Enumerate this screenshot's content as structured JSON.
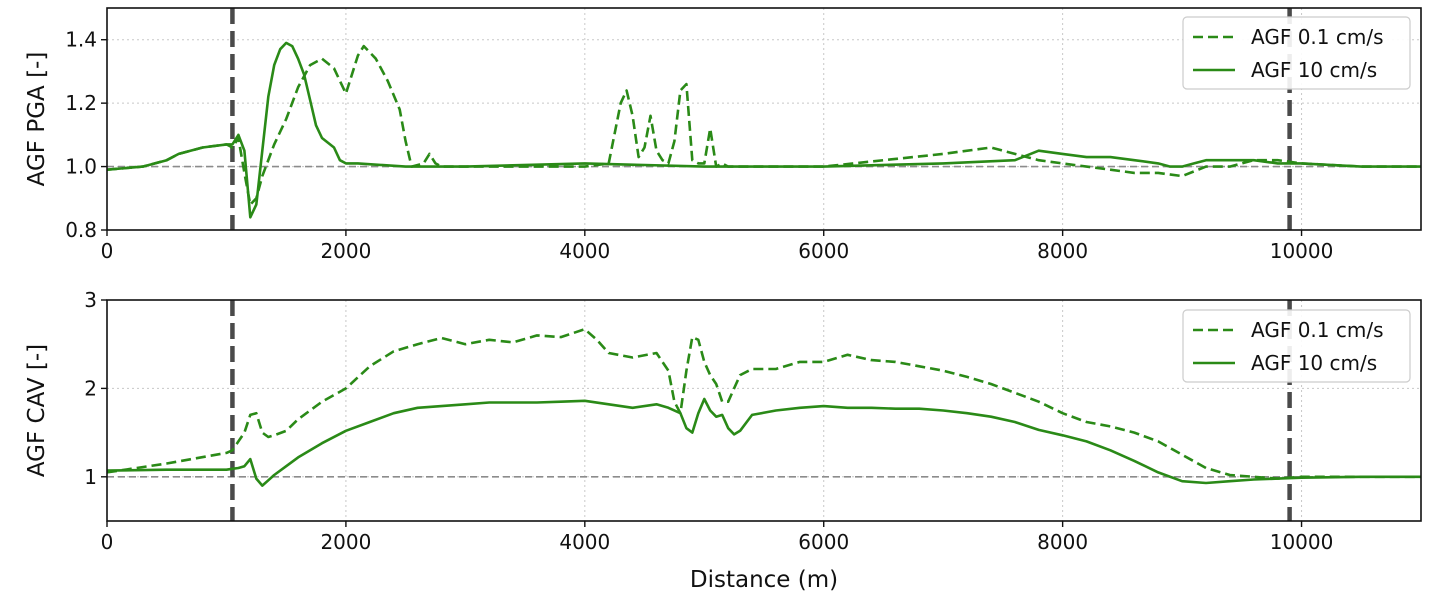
{
  "chart_data": [
    {
      "type": "line",
      "ylabel": "AGF PGA [-]",
      "xlabel": "",
      "xlim": [
        0,
        11000
      ],
      "ylim": [
        0.8,
        1.5
      ],
      "xticks": [
        "0",
        "2000",
        "4000",
        "6000",
        "8000",
        "10000"
      ],
      "xtick_values": [
        0,
        2000,
        4000,
        6000,
        8000,
        10000
      ],
      "yticks": [
        "0.8",
        "1.0",
        "1.2",
        "1.4"
      ],
      "ytick_values": [
        0.8,
        1.0,
        1.2,
        1.4
      ],
      "grid": true,
      "legend_position": "top-right",
      "reference_line": 1.0,
      "vertical_markers": [
        1050,
        9900
      ],
      "series": [
        {
          "name": "AGF 0.1 cm/s",
          "style": "dashed",
          "color": "#2a8a17",
          "x": [
            0,
            300,
            500,
            600,
            800,
            1000,
            1050,
            1100,
            1150,
            1200,
            1250,
            1300,
            1400,
            1500,
            1600,
            1700,
            1800,
            1900,
            2000,
            2100,
            2150,
            2250,
            2350,
            2450,
            2500,
            2550,
            2650,
            2700,
            2750,
            2800,
            3000,
            3500,
            4000,
            4200,
            4300,
            4350,
            4400,
            4450,
            4500,
            4550,
            4600,
            4650,
            4700,
            4750,
            4800,
            4850,
            4900,
            4950,
            5000,
            5050,
            5100,
            5150,
            5200,
            5250,
            5300,
            5500,
            6000,
            6500,
            7000,
            7400,
            7600,
            7800,
            8000,
            8200,
            8400,
            8600,
            8800,
            9000,
            9200,
            9400,
            9600,
            9800,
            10000,
            10500,
            11000
          ],
          "y": [
            0.99,
            1.0,
            1.02,
            1.04,
            1.06,
            1.07,
            1.06,
            1.09,
            0.98,
            0.88,
            0.9,
            0.97,
            1.07,
            1.15,
            1.25,
            1.32,
            1.34,
            1.31,
            1.23,
            1.35,
            1.38,
            1.34,
            1.27,
            1.18,
            1.08,
            1.0,
            1.01,
            1.04,
            1.01,
            1.0,
            1.0,
            1.0,
            1.0,
            1.01,
            1.2,
            1.24,
            1.16,
            1.03,
            1.06,
            1.16,
            1.05,
            1.02,
            1.01,
            1.08,
            1.24,
            1.26,
            1.02,
            1.01,
            1.01,
            1.12,
            1.0,
            1.01,
            1.0,
            1.0,
            1.0,
            1.0,
            1.0,
            1.02,
            1.04,
            1.06,
            1.04,
            1.02,
            1.01,
            1.0,
            0.99,
            0.98,
            0.98,
            0.97,
            1.0,
            1.0,
            1.02,
            1.02,
            1.01,
            1.0,
            1.0
          ]
        },
        {
          "name": "AGF 10 cm/s",
          "style": "solid",
          "color": "#2a8a17",
          "x": [
            0,
            300,
            500,
            600,
            800,
            1000,
            1050,
            1100,
            1150,
            1200,
            1250,
            1300,
            1350,
            1400,
            1450,
            1500,
            1550,
            1600,
            1650,
            1700,
            1750,
            1800,
            1900,
            1950,
            2000,
            2100,
            2500,
            3000,
            4000,
            5000,
            6000,
            7000,
            7600,
            7800,
            8000,
            8200,
            8400,
            8600,
            8800,
            8900,
            9000,
            9100,
            9200,
            9300,
            9400,
            9500,
            9600,
            9800,
            10000,
            10500,
            11000
          ],
          "y": [
            0.99,
            1.0,
            1.02,
            1.04,
            1.06,
            1.07,
            1.07,
            1.1,
            1.05,
            0.84,
            0.88,
            1.05,
            1.22,
            1.32,
            1.37,
            1.39,
            1.38,
            1.34,
            1.29,
            1.21,
            1.13,
            1.09,
            1.06,
            1.02,
            1.01,
            1.01,
            1.0,
            1.0,
            1.01,
            1.0,
            1.0,
            1.01,
            1.02,
            1.05,
            1.04,
            1.03,
            1.03,
            1.02,
            1.01,
            1.0,
            1.0,
            1.01,
            1.02,
            1.02,
            1.02,
            1.02,
            1.02,
            1.01,
            1.01,
            1.0,
            1.0
          ]
        }
      ]
    },
    {
      "type": "line",
      "ylabel": "AGF CAV [-]",
      "xlabel": "Distance (m)",
      "xlim": [
        0,
        11000
      ],
      "ylim": [
        0.5,
        3.0
      ],
      "xticks": [
        "0",
        "2000",
        "4000",
        "6000",
        "8000",
        "10000"
      ],
      "xtick_values": [
        0,
        2000,
        4000,
        6000,
        8000,
        10000
      ],
      "yticks": [
        "1",
        "2",
        "3"
      ],
      "ytick_values": [
        1,
        2,
        3
      ],
      "grid": true,
      "legend_position": "top-right",
      "reference_line": 1.0,
      "vertical_markers": [
        1050,
        9900
      ],
      "series": [
        {
          "name": "AGF 0.1 cm/s",
          "style": "dashed",
          "color": "#2a8a17",
          "x": [
            0,
            500,
            1000,
            1050,
            1100,
            1150,
            1200,
            1250,
            1300,
            1350,
            1400,
            1500,
            1600,
            1800,
            2000,
            2200,
            2400,
            2600,
            2800,
            3000,
            3200,
            3400,
            3600,
            3800,
            4000,
            4100,
            4200,
            4400,
            4600,
            4700,
            4750,
            4800,
            4850,
            4900,
            4950,
            5000,
            5050,
            5100,
            5150,
            5200,
            5250,
            5300,
            5400,
            5600,
            5800,
            6000,
            6200,
            6400,
            6600,
            6800,
            7000,
            7200,
            7400,
            7600,
            7800,
            8000,
            8200,
            8400,
            8600,
            8800,
            9000,
            9200,
            9400,
            9600,
            9800,
            10000,
            10500,
            11000
          ],
          "y": [
            1.05,
            1.15,
            1.27,
            1.3,
            1.4,
            1.5,
            1.7,
            1.72,
            1.5,
            1.45,
            1.47,
            1.52,
            1.65,
            1.85,
            2.0,
            2.25,
            2.42,
            2.5,
            2.57,
            2.5,
            2.55,
            2.52,
            2.6,
            2.58,
            2.67,
            2.55,
            2.4,
            2.35,
            2.4,
            2.2,
            1.85,
            1.72,
            2.2,
            2.58,
            2.55,
            2.3,
            2.15,
            2.05,
            1.85,
            1.85,
            2.0,
            2.15,
            2.22,
            2.22,
            2.3,
            2.3,
            2.38,
            2.32,
            2.3,
            2.25,
            2.2,
            2.13,
            2.05,
            1.95,
            1.85,
            1.72,
            1.62,
            1.57,
            1.5,
            1.4,
            1.25,
            1.1,
            1.02,
            1.0,
            0.98,
            1.0,
            1.0,
            1.0
          ]
        },
        {
          "name": "AGF 10 cm/s",
          "style": "solid",
          "color": "#2a8a17",
          "x": [
            0,
            500,
            1000,
            1050,
            1100,
            1150,
            1200,
            1250,
            1300,
            1350,
            1400,
            1500,
            1600,
            1800,
            2000,
            2200,
            2400,
            2600,
            2800,
            3000,
            3200,
            3400,
            3600,
            3800,
            4000,
            4200,
            4400,
            4600,
            4700,
            4800,
            4850,
            4900,
            4950,
            5000,
            5050,
            5100,
            5150,
            5200,
            5250,
            5300,
            5400,
            5600,
            5800,
            6000,
            6200,
            6400,
            6600,
            6800,
            7000,
            7200,
            7400,
            7600,
            7800,
            8000,
            8200,
            8400,
            8600,
            8800,
            9000,
            9200,
            9400,
            9600,
            9800,
            10000,
            10500,
            11000
          ],
          "y": [
            1.07,
            1.08,
            1.08,
            1.09,
            1.1,
            1.12,
            1.2,
            0.98,
            0.9,
            0.96,
            1.02,
            1.12,
            1.22,
            1.38,
            1.52,
            1.62,
            1.72,
            1.78,
            1.8,
            1.82,
            1.84,
            1.84,
            1.84,
            1.85,
            1.86,
            1.82,
            1.78,
            1.82,
            1.78,
            1.72,
            1.55,
            1.5,
            1.72,
            1.88,
            1.75,
            1.68,
            1.7,
            1.55,
            1.48,
            1.52,
            1.7,
            1.75,
            1.78,
            1.8,
            1.78,
            1.78,
            1.77,
            1.77,
            1.75,
            1.72,
            1.68,
            1.62,
            1.53,
            1.47,
            1.4,
            1.3,
            1.18,
            1.05,
            0.95,
            0.93,
            0.95,
            0.97,
            0.98,
            0.99,
            1.0,
            1.0
          ]
        }
      ]
    }
  ]
}
